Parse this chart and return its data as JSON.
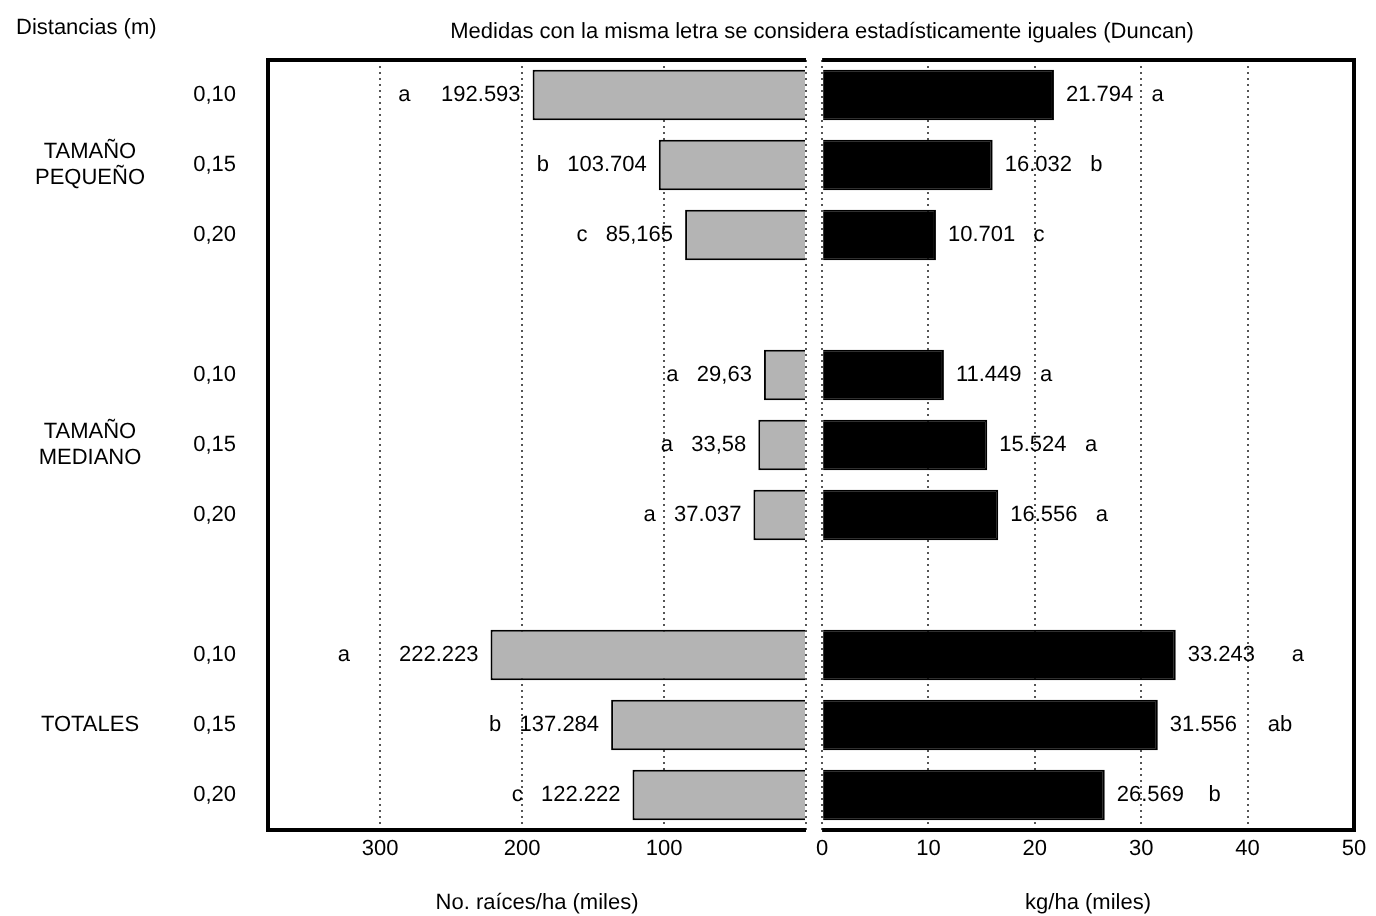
{
  "chart_data": [
    {
      "type": "bar",
      "orientation": "horizontal",
      "title": "Medidas con la misma letra se considera estadísticamente iguales (Duncan)",
      "ylabel": "Distancias (m)",
      "xlabel": "No. raíces/ha (miles)",
      "categories": [
        "0,10",
        "0,15",
        "0,20",
        null,
        "0,10",
        "0,15",
        "0,20",
        null,
        "0,10",
        "0,15",
        "0,20"
      ],
      "series": [
        {
          "color": "#b4b4b4",
          "values": [
            192.593,
            103.704,
            85.165,
            null,
            29.63,
            33.58,
            37.037,
            null,
            222.223,
            137.284,
            122.222
          ],
          "value_labels": [
            "a     192.593",
            "b   103.704",
            "c   85,165",
            null,
            "a   29,63",
            "a   33,58",
            "a   37.037",
            null,
            "a        222.223",
            "b   137.284",
            "c   122.222"
          ]
        }
      ],
      "xlim": [
        379,
        0
      ],
      "xticks": [
        300,
        200,
        100,
        {
          "value": 0,
          "label": null
        }
      ],
      "grid": "x",
      "annotations": [
        "TAMAÑO PEQUEÑO",
        "TAMAÑO MEDIANO",
        "TOTALES"
      ]
    },
    {
      "type": "bar",
      "orientation": "horizontal",
      "xlabel": "kg/ha (miles)",
      "tick_labels": "x",
      "categories": [
        "0,10",
        "0,15",
        "0,20",
        null,
        "0,10",
        "0,15",
        "0,20",
        null,
        "0,10",
        "0,15",
        "0,20"
      ],
      "series": [
        {
          "color": "#000000",
          "values": [
            21.794,
            16.032,
            10.701,
            null,
            11.449,
            15.524,
            16.556,
            null,
            33.243,
            31.556,
            26.569
          ],
          "value_labels": [
            "21.794   a",
            "16.032   b",
            "10.701   c",
            null,
            "11.449   a",
            "15.524   a",
            "16.556   a",
            null,
            "33.243      a",
            "31.556     ab",
            "26.569    b"
          ]
        }
      ],
      "xlim": [
        0,
        50
      ],
      "xticks": [
        0,
        10,
        20,
        30,
        40,
        50
      ],
      "grid": "x"
    }
  ]
}
